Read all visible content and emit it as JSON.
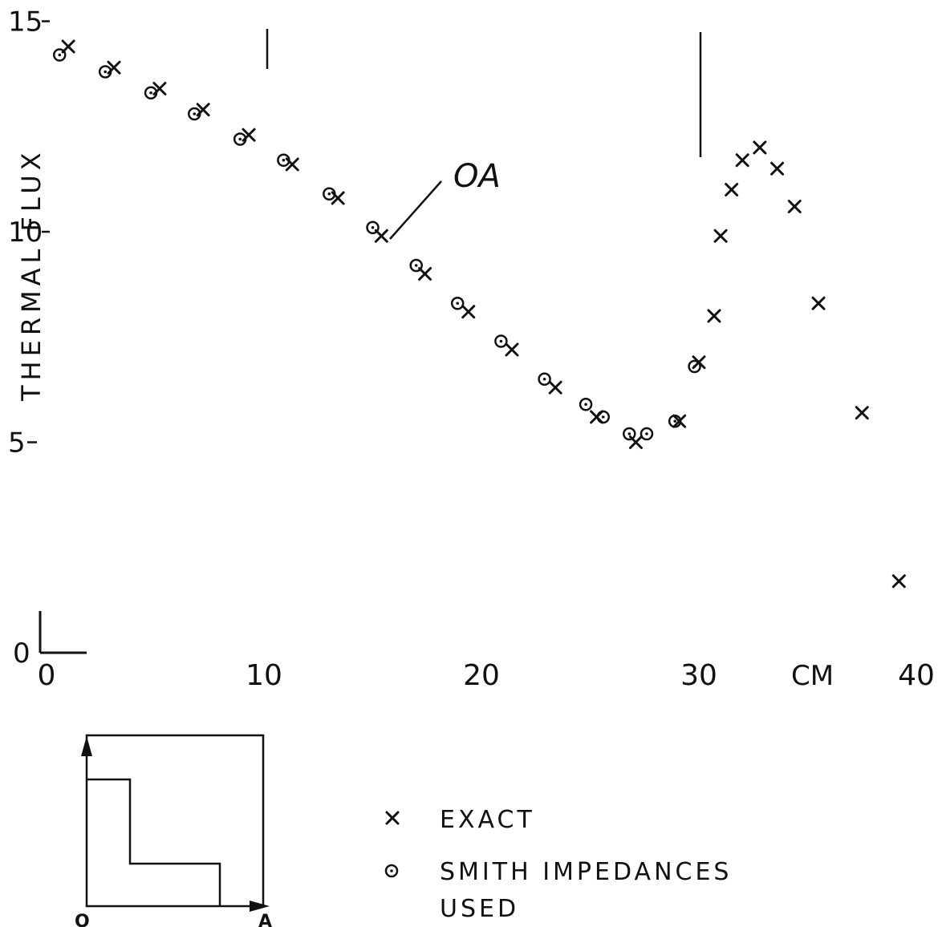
{
  "chart_data": {
    "type": "scatter",
    "ylabel": "THERMAL FLUX",
    "xunit": "CM",
    "xlim": [
      0,
      40
    ],
    "ylim": [
      0,
      15
    ],
    "x_ticks": [
      {
        "value": 0,
        "label": "0"
      },
      {
        "value": 10,
        "label": "10"
      },
      {
        "value": 20,
        "label": "20"
      },
      {
        "value": 30,
        "label": "30"
      },
      {
        "value": 40,
        "label": "40"
      }
    ],
    "y_ticks": [
      {
        "value": 0,
        "label": "0"
      },
      {
        "value": 5,
        "label": "5"
      },
      {
        "value": 10,
        "label": "10"
      },
      {
        "value": 15,
        "label": "15"
      }
    ],
    "annotation": "OA",
    "region_boundaries_x": [
      10.3,
      30.3
    ],
    "series": [
      {
        "name": "EXACT",
        "marker": "x",
        "points": [
          [
            1.0,
            14.4
          ],
          [
            3.1,
            13.9
          ],
          [
            5.2,
            13.4
          ],
          [
            7.2,
            12.9
          ],
          [
            9.3,
            12.3
          ],
          [
            11.3,
            11.6
          ],
          [
            13.4,
            10.8
          ],
          [
            15.4,
            9.9
          ],
          [
            17.4,
            9.0
          ],
          [
            19.4,
            8.1
          ],
          [
            21.4,
            7.2
          ],
          [
            23.4,
            6.3
          ],
          [
            25.3,
            5.6
          ],
          [
            27.1,
            5.0
          ],
          [
            29.1,
            5.5
          ],
          [
            30.0,
            6.9
          ],
          [
            30.7,
            8.0
          ],
          [
            31.0,
            9.9
          ],
          [
            31.5,
            11.0
          ],
          [
            32.0,
            11.7
          ],
          [
            32.8,
            12.0
          ],
          [
            33.6,
            11.5
          ],
          [
            34.4,
            10.6
          ],
          [
            35.5,
            8.3
          ],
          [
            37.5,
            5.7
          ],
          [
            39.2,
            1.7
          ]
        ]
      },
      {
        "name": "SMITH IMPEDANCES USED",
        "marker": "circle-dot",
        "points": [
          [
            0.6,
            14.2
          ],
          [
            2.7,
            13.8
          ],
          [
            4.8,
            13.3
          ],
          [
            6.8,
            12.8
          ],
          [
            8.9,
            12.2
          ],
          [
            10.9,
            11.7
          ],
          [
            13.0,
            10.9
          ],
          [
            15.0,
            10.1
          ],
          [
            17.0,
            9.2
          ],
          [
            18.9,
            8.3
          ],
          [
            20.9,
            7.4
          ],
          [
            22.9,
            6.5
          ],
          [
            24.8,
            5.9
          ],
          [
            25.6,
            5.6
          ],
          [
            26.8,
            5.2
          ],
          [
            27.6,
            5.2
          ],
          [
            28.9,
            5.5
          ],
          [
            29.8,
            6.8
          ]
        ]
      }
    ]
  },
  "legend": {
    "exact_symbol": "×",
    "exact_label": "EXACT",
    "smith_label_line1": "SMITH IMPEDANCES",
    "smith_label_line2": "USED"
  },
  "inset": {
    "origin_label": "O",
    "axis_label": "A"
  }
}
